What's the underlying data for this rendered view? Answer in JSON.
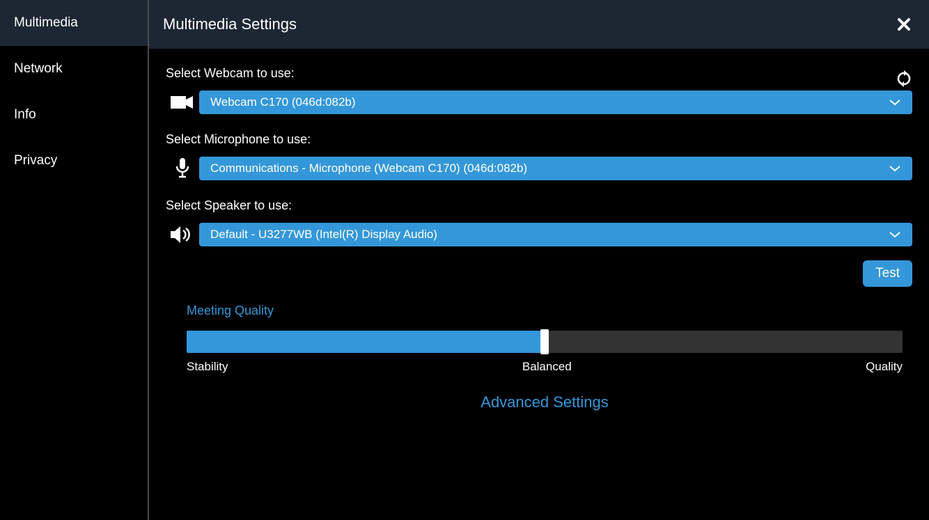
{
  "colors": {
    "header_bg": "#1c2733",
    "accent": "#3497d9",
    "track": "#333333",
    "thumb": "#ffffff",
    "text": "#ffffff",
    "bg": "#000000",
    "sidebar_border": "#4a4a4a"
  },
  "sidebar": {
    "items": [
      {
        "label": "Multimedia",
        "active": true
      },
      {
        "label": "Network",
        "active": false
      },
      {
        "label": "Info",
        "active": false
      },
      {
        "label": "Privacy",
        "active": false
      }
    ]
  },
  "header": {
    "title": "Multimedia Settings"
  },
  "webcam": {
    "label": "Select Webcam to use:",
    "value": "Webcam C170 (046d:082b)"
  },
  "microphone": {
    "label": "Select Microphone to use:",
    "value": "Communications - Microphone (Webcam C170) (046d:082b)"
  },
  "speaker": {
    "label": "Select Speaker to use:",
    "value": "Default - U3277WB (Intel(R) Display Audio)"
  },
  "test_button": "Test",
  "quality": {
    "title": "Meeting Quality",
    "value_percent": 50,
    "labels": {
      "left": "Stability",
      "mid": "Balanced",
      "right": "Quality"
    }
  },
  "advanced_link": "Advanced Settings"
}
